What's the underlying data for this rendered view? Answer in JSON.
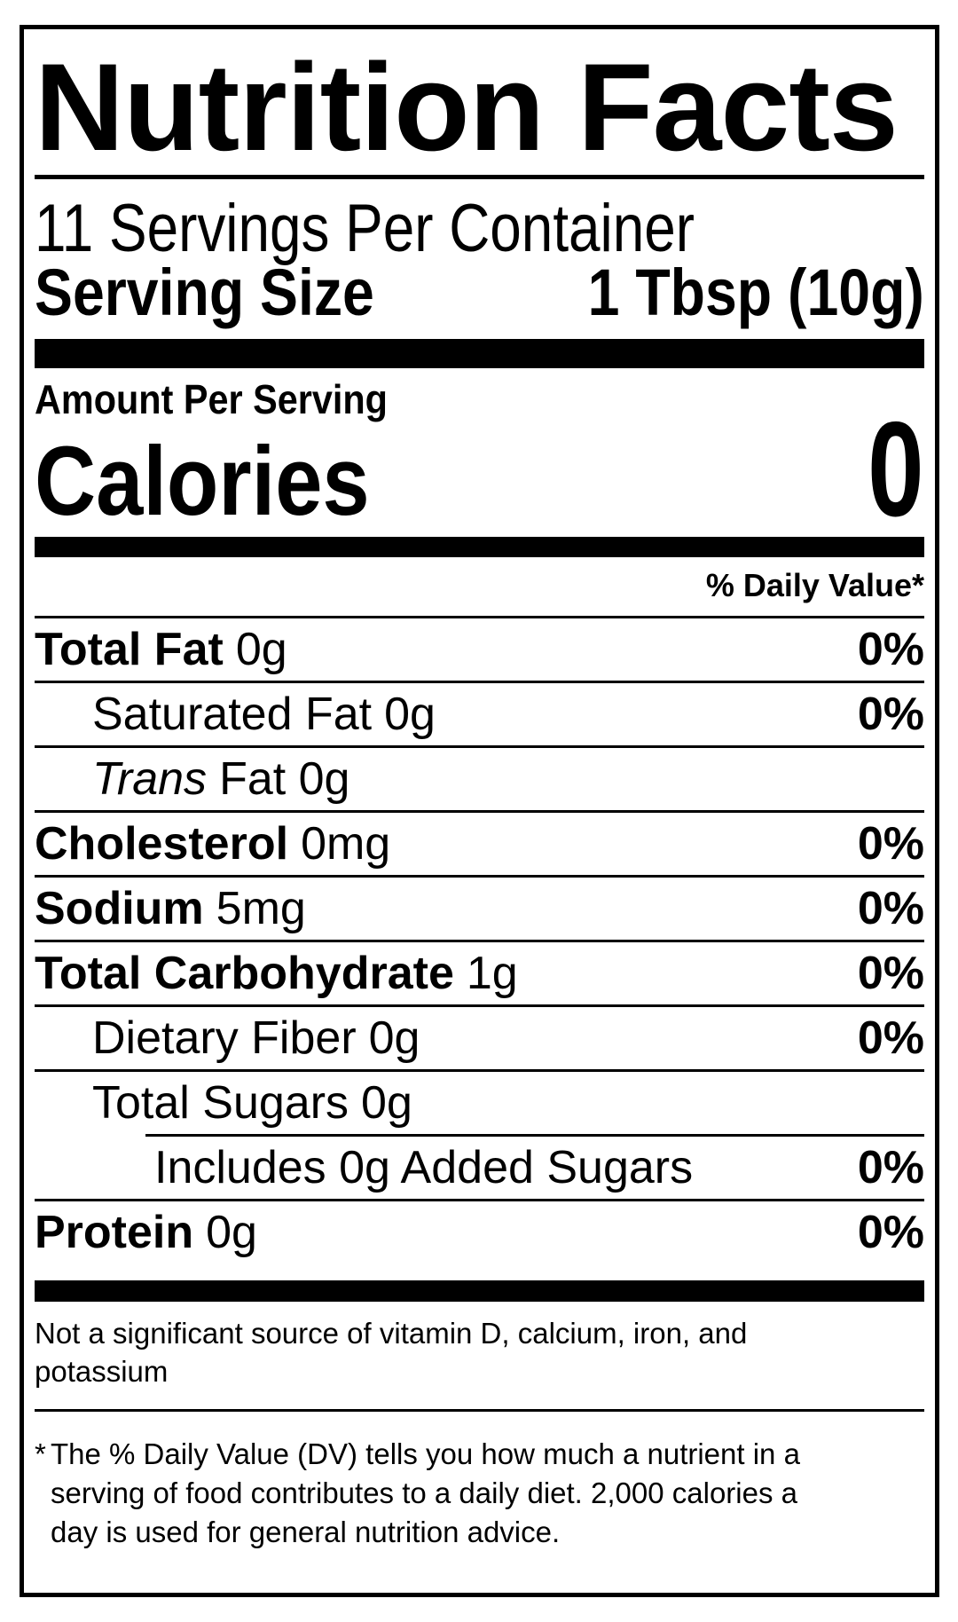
{
  "colors": {
    "text": "#000000",
    "background": "#ffffff"
  },
  "label": {
    "title": "Nutrition Facts",
    "servings_per_container": "11 Servings Per Container",
    "serving_size": {
      "label": "Serving Size",
      "value": "1 Tbsp (10g)"
    },
    "amount_per_serving": "Amount Per Serving",
    "calories": {
      "label": "Calories",
      "value": "0"
    },
    "daily_value_header": "% Daily Value*",
    "nutrients": [
      {
        "name": "Total Fat",
        "amount": "0g",
        "dv": "0%"
      },
      {
        "name": "Saturated Fat",
        "amount": "0g",
        "dv": "0%"
      },
      {
        "name": "Trans",
        "amount": "Fat 0g",
        "dv": ""
      },
      {
        "name": "Cholesterol",
        "amount": "0mg",
        "dv": "0%"
      },
      {
        "name": "Sodium",
        "amount": "5mg",
        "dv": "0%"
      },
      {
        "name": "Total Carbohydrate",
        "amount": "1g",
        "dv": "0%"
      },
      {
        "name": "Dietary Fiber",
        "amount": "0g",
        "dv": "0%"
      },
      {
        "name": "Total Sugars",
        "amount": "0g",
        "dv": ""
      },
      {
        "name": "Includes 0g Added Sugars",
        "amount": "",
        "dv": "0%"
      },
      {
        "name": "Protein",
        "amount": "0g",
        "dv": "0%"
      }
    ],
    "not_significant_note": "Not a significant source of vitamin D, calcium, iron, and potassium",
    "footnote": {
      "marker": "*",
      "text": "The % Daily Value (DV) tells you how much a nutrient in a serving of food contributes to a daily diet. 2,000 calories a day is used for general nutrition advice."
    }
  }
}
